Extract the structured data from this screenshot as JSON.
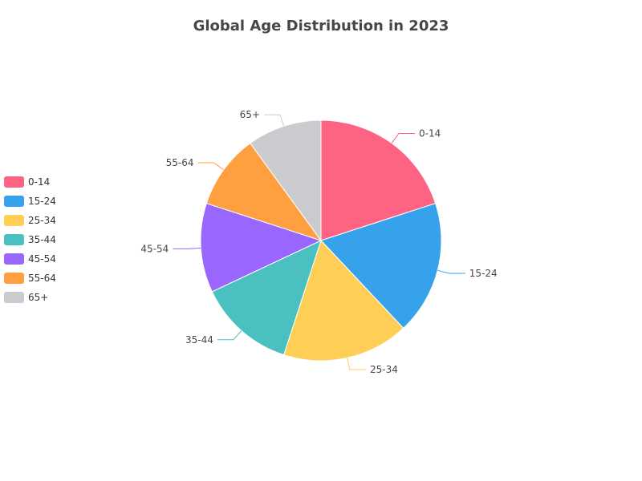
{
  "chart_data": {
    "type": "pie",
    "title": "Global Age Distribution in 2023",
    "legend_position": "left",
    "slices": [
      {
        "label": "0-14",
        "value": 20,
        "color": "#ff6384"
      },
      {
        "label": "15-24",
        "value": 18,
        "color": "#36a2eb"
      },
      {
        "label": "25-34",
        "value": 17,
        "color": "#ffce56"
      },
      {
        "label": "35-44",
        "value": 13,
        "color": "#4bc0c0"
      },
      {
        "label": "45-54",
        "value": 12,
        "color": "#9966ff"
      },
      {
        "label": "55-64",
        "value": 10,
        "color": "#ff9f40"
      },
      {
        "label": "65+",
        "value": 10,
        "color": "#c9cbcf"
      }
    ]
  }
}
